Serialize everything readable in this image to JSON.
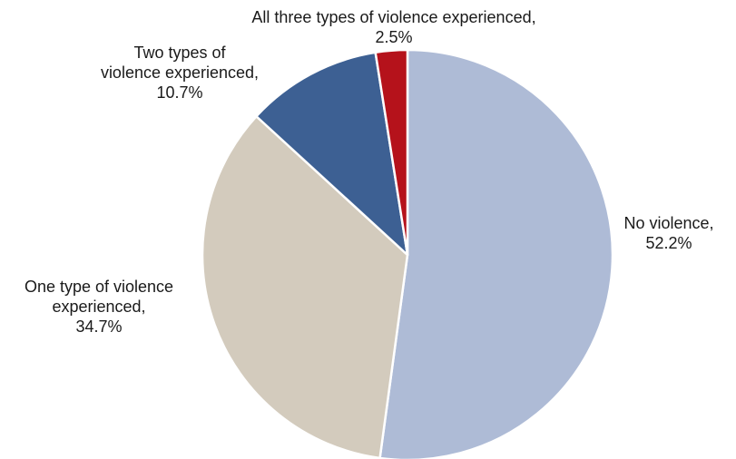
{
  "chart_data": {
    "type": "pie",
    "title": "",
    "start_angle_deg": 0,
    "direction": "clockwise",
    "slices": [
      {
        "name": "No violence",
        "value": 52.2,
        "value_text": "52.2%",
        "color": "#aebbd6",
        "label_lines": [
          "No violence,",
          "52.2%"
        ]
      },
      {
        "name": "One type of violence experienced",
        "value": 34.7,
        "value_text": "34.7%",
        "color": "#d3cbbd",
        "label_lines": [
          "One type of violence",
          "experienced,",
          "34.7%"
        ]
      },
      {
        "name": "Two types of violence experienced",
        "value": 10.7,
        "value_text": "10.7%",
        "color": "#3d6093",
        "label_lines": [
          "Two types of",
          "violence experienced,",
          "10.7%"
        ]
      },
      {
        "name": "All three types of violence experienced",
        "value": 2.5,
        "value_text": "2.5%",
        "color": "#b5121b",
        "label_lines": [
          "All three types of violence experienced,",
          "2.5%"
        ]
      }
    ]
  }
}
